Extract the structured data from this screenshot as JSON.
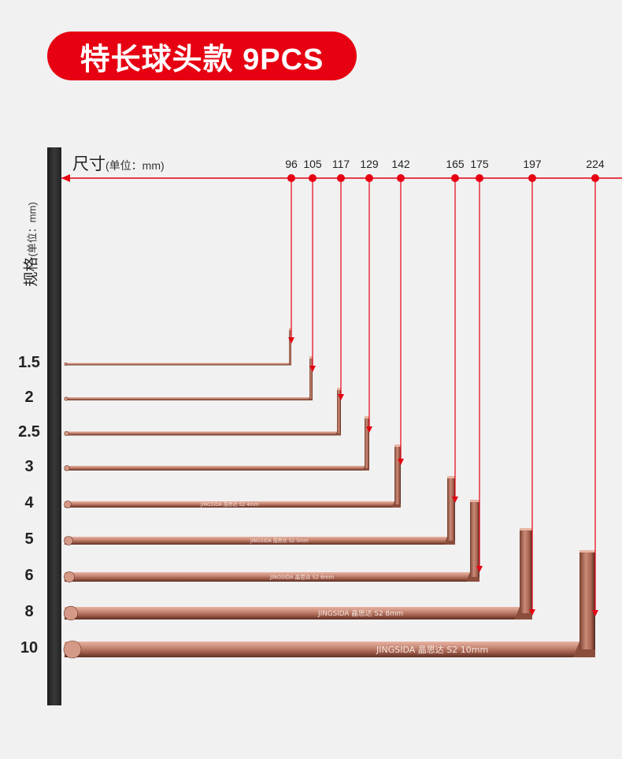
{
  "title": "特长球头款 9PCS",
  "ruler": {
    "label": "尺寸",
    "unit": "(单位：mm)"
  },
  "spec_axis": {
    "label": "规格",
    "unit": "(单位：mm)"
  },
  "lengths": [
    "96",
    "105",
    "117",
    "129",
    "142",
    "165",
    "175",
    "197",
    "224"
  ],
  "sizes": [
    "1.5",
    "2",
    "2.5",
    "3",
    "4",
    "5",
    "6",
    "8",
    "10"
  ],
  "keys": [
    {
      "size": "1.5",
      "length": 96,
      "engraving": ""
    },
    {
      "size": "2",
      "length": 105,
      "engraving": ""
    },
    {
      "size": "2.5",
      "length": 117,
      "engraving": ""
    },
    {
      "size": "3",
      "length": 129,
      "engraving": ""
    },
    {
      "size": "4",
      "length": 142,
      "engraving": "S2 4mm"
    },
    {
      "size": "5",
      "length": 165,
      "engraving": "S2 5mm"
    },
    {
      "size": "6",
      "length": 175,
      "engraving": "S2 6mm"
    },
    {
      "size": "8",
      "length": 197,
      "engraving": "S2 8mm"
    },
    {
      "size": "10",
      "length": 224,
      "engraving": "S2 10mm"
    }
  ],
  "brand": "JINGSIDA",
  "brand_cn": "晶思达",
  "colors": {
    "accent": "#e60011",
    "key_copper": "#b3705f",
    "board": "#2b2b2b"
  }
}
